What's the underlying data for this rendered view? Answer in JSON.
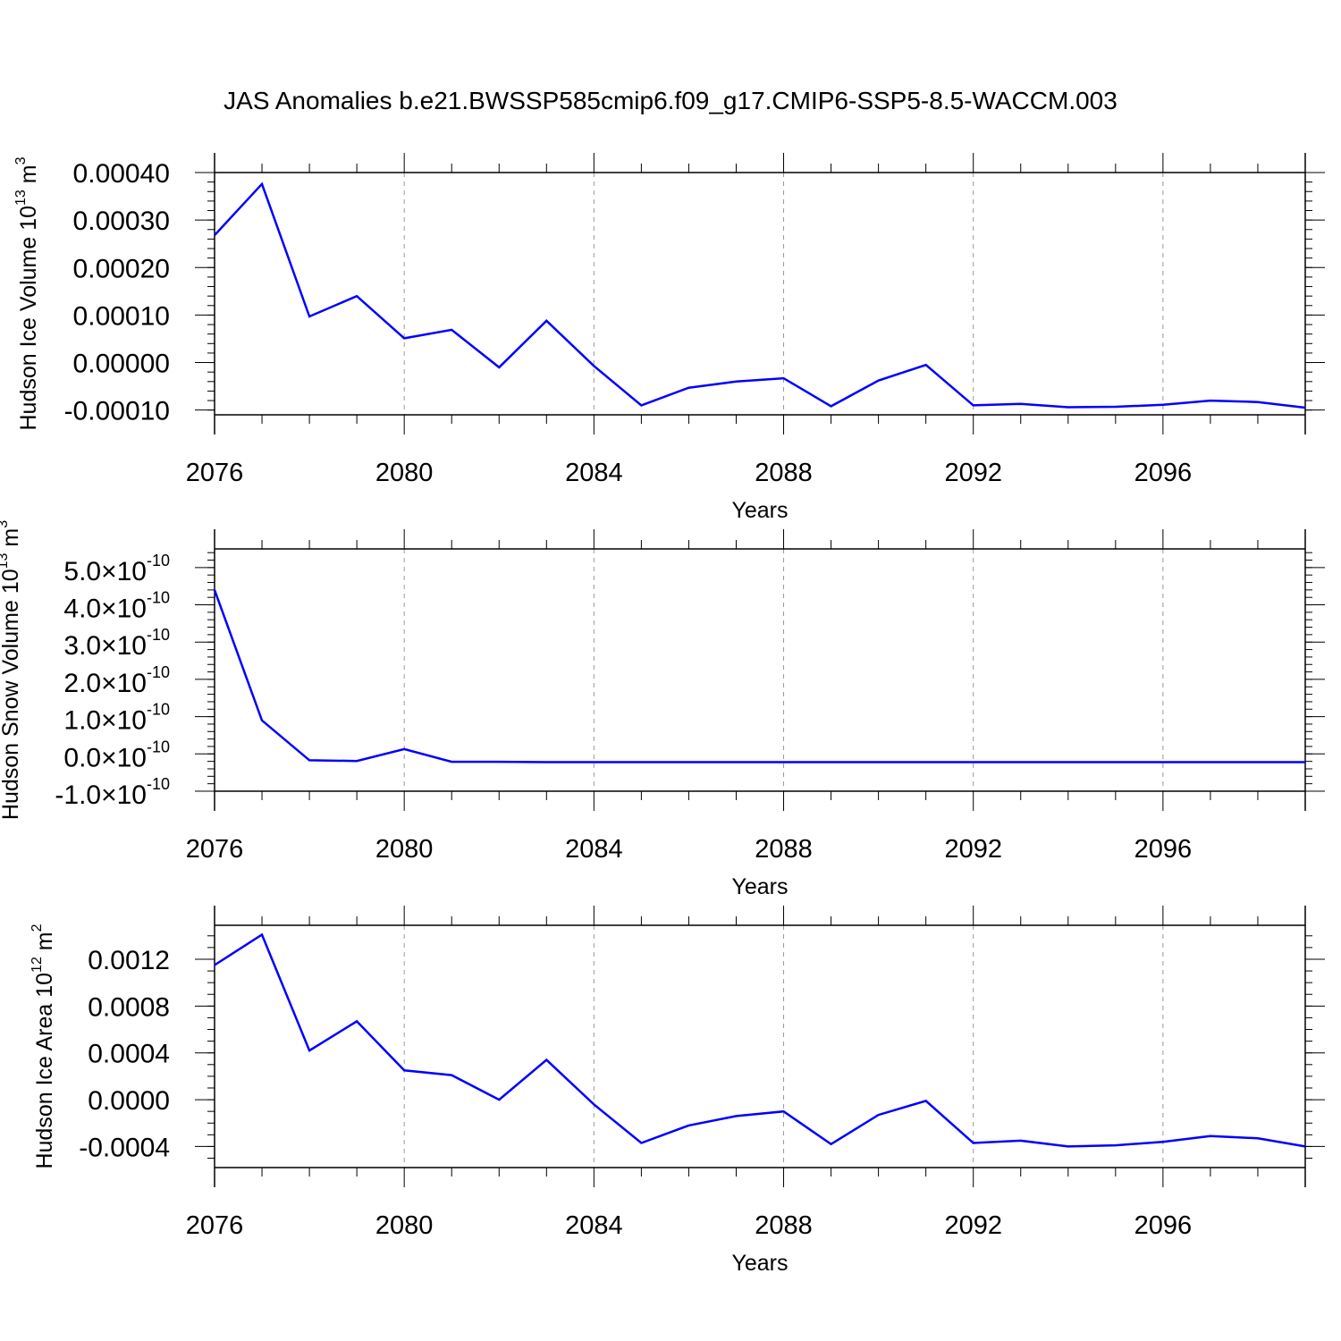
{
  "title": "JAS Anomalies b.e21.BWSSP585cmip6.f09_g17.CMIP6-SSP5-8.5-WACCM.003",
  "colors": {
    "line": "#0000ff",
    "axis": "#000000",
    "grid": "#999999",
    "background": "#ffffff"
  },
  "chart_data": [
    {
      "type": "line",
      "ylabel": "Hudson Ice Volume 10",
      "ylabel_exp": "13",
      "ylabel_unit": " m",
      "ylabel_unit_exp": "3",
      "xlabel": "Years",
      "xlim": [
        2076,
        2099
      ],
      "ylim": [
        -0.00011,
        0.0004
      ],
      "yticks": [
        -0.0001,
        0.0,
        0.0001,
        0.0002,
        0.0003,
        0.0004
      ],
      "ytick_labels": [
        "-0.00010",
        "0.00000",
        "0.00010",
        "0.00020",
        "0.00030",
        "0.00040"
      ],
      "yticks_minor_step": 2e-05,
      "xticks": [
        2076,
        2080,
        2084,
        2088,
        2092,
        2096
      ],
      "xtick_labels": [
        "2076",
        "2080",
        "2084",
        "2088",
        "2092",
        "2096"
      ],
      "grid": "vertical dashed at labeled years",
      "x": [
        2076,
        2077,
        2078,
        2079,
        2080,
        2081,
        2082,
        2083,
        2084,
        2085,
        2086,
        2087,
        2088,
        2089,
        2090,
        2091,
        2092,
        2093,
        2094,
        2095,
        2096,
        2097,
        2098,
        2099
      ],
      "series": [
        {
          "values": [
            0.000268,
            0.000376,
            9.7e-05,
            0.00014,
            5.1e-05,
            6.9e-05,
            -1e-05,
            8.8e-05,
            -7e-06,
            -9e-05,
            -5.3e-05,
            -4e-05,
            -3.3e-05,
            -9.2e-05,
            -3.8e-05,
            -5e-06,
            -9e-05,
            -8.7e-05,
            -9.4e-05,
            -9.3e-05,
            -8.9e-05,
            -8e-05,
            -8.3e-05,
            -9.5e-05
          ]
        }
      ]
    },
    {
      "type": "line",
      "ylabel": "Hudson Snow Volume 10",
      "ylabel_exp": "13",
      "ylabel_unit": " m",
      "ylabel_unit_exp": "3",
      "xlabel": "Years",
      "xlim": [
        2076,
        2099
      ],
      "ylim": [
        -1e-10,
        5.5e-10
      ],
      "yticks": [
        -1e-10,
        0.0,
        1e-10,
        2e-10,
        3e-10,
        4e-10,
        5e-10
      ],
      "ytick_mantissas": [
        "-1.0",
        "0.0",
        "1.0",
        "2.0",
        "3.0",
        "4.0",
        "5.0"
      ],
      "ytick_times": "×10",
      "ytick_exp": "-10",
      "yticks_minor_step": 2e-11,
      "xticks": [
        2076,
        2080,
        2084,
        2088,
        2092,
        2096
      ],
      "xtick_labels": [
        "2076",
        "2080",
        "2084",
        "2088",
        "2092",
        "2096"
      ],
      "grid": "vertical dashed at labeled years",
      "x": [
        2076,
        2077,
        2078,
        2079,
        2080,
        2081,
        2082,
        2083,
        2084,
        2085,
        2086,
        2087,
        2088,
        2089,
        2090,
        2091,
        2092,
        2093,
        2094,
        2095,
        2096,
        2097,
        2098,
        2099
      ],
      "series": [
        {
          "values": [
            4.4e-10,
            9e-11,
            -1.7e-11,
            -1.9e-11,
            1.3e-11,
            -2.1e-11,
            -2.1e-11,
            -2.2e-11,
            -2.2e-11,
            -2.2e-11,
            -2.2e-11,
            -2.2e-11,
            -2.2e-11,
            -2.2e-11,
            -2.2e-11,
            -2.2e-11,
            -2.2e-11,
            -2.2e-11,
            -2.2e-11,
            -2.2e-11,
            -2.2e-11,
            -2.2e-11,
            -2.2e-11,
            -2.2e-11
          ]
        }
      ]
    },
    {
      "type": "line",
      "ylabel": "Hudson Ice Area 10",
      "ylabel_exp": "12",
      "ylabel_unit": " m",
      "ylabel_unit_exp": "2",
      "xlabel": "Years",
      "xlim": [
        2076,
        2099
      ],
      "ylim": [
        -0.00058,
        0.00149
      ],
      "yticks": [
        -0.0004,
        0.0,
        0.0004,
        0.0008,
        0.0012
      ],
      "ytick_labels": [
        "-0.0004",
        "0.0000",
        "0.0004",
        "0.0008",
        "0.0012"
      ],
      "yticks_minor_step": 0.0001,
      "xticks": [
        2076,
        2080,
        2084,
        2088,
        2092,
        2096
      ],
      "xtick_labels": [
        "2076",
        "2080",
        "2084",
        "2088",
        "2092",
        "2096"
      ],
      "grid": "vertical dashed at labeled years",
      "x": [
        2076,
        2077,
        2078,
        2079,
        2080,
        2081,
        2082,
        2083,
        2084,
        2085,
        2086,
        2087,
        2088,
        2089,
        2090,
        2091,
        2092,
        2093,
        2094,
        2095,
        2096,
        2097,
        2098,
        2099
      ],
      "series": [
        {
          "values": [
            0.00115,
            0.00141,
            0.00042,
            0.00067,
            0.00025,
            0.00021,
            0.0,
            0.00034,
            -4e-05,
            -0.00037,
            -0.00022,
            -0.00014,
            -0.0001,
            -0.00038,
            -0.00013,
            -1e-05,
            -0.00037,
            -0.00035,
            -0.0004,
            -0.00039,
            -0.00036,
            -0.00031,
            -0.00033,
            -0.0004
          ]
        }
      ]
    }
  ]
}
